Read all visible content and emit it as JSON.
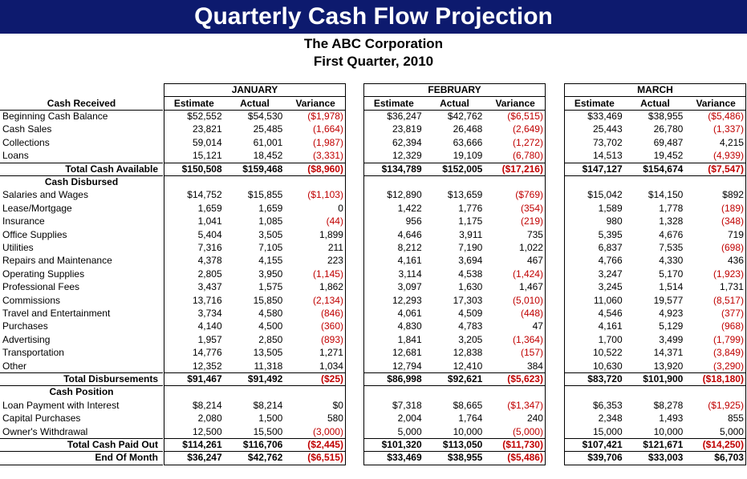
{
  "header": {
    "title": "Quarterly Cash Flow Projection",
    "company": "The ABC Corporation",
    "period": "First Quarter, 2010"
  },
  "months": [
    "JANUARY",
    "FEBRUARY",
    "MARCH"
  ],
  "columns": [
    "Estimate",
    "Actual",
    "Variance"
  ],
  "sections": [
    {
      "title": "Cash Received",
      "rows": [
        {
          "label": "Beginning Cash Balance",
          "cells": [
            "$52,552",
            "$54,530",
            "($1,978)",
            "$36,247",
            "$42,762",
            "($6,515)",
            "$33,469",
            "$38,955",
            "($5,486)"
          ]
        },
        {
          "label": "Cash Sales",
          "cells": [
            "23,821",
            "25,485",
            "(1,664)",
            "23,819",
            "26,468",
            "(2,649)",
            "25,443",
            "26,780",
            "(1,337)"
          ]
        },
        {
          "label": "Collections",
          "cells": [
            "59,014",
            "61,001",
            "(1,987)",
            "62,394",
            "63,666",
            "(1,272)",
            "73,702",
            "69,487",
            "4,215"
          ]
        },
        {
          "label": "Loans",
          "cells": [
            "15,121",
            "18,452",
            "(3,331)",
            "12,329",
            "19,109",
            "(6,780)",
            "14,513",
            "19,452",
            "(4,939)"
          ]
        }
      ],
      "totals": [
        {
          "label": "Total Cash Available",
          "cells": [
            "$150,508",
            "$159,468",
            "($8,960)",
            "$134,789",
            "$152,005",
            "($17,216)",
            "$147,127",
            "$154,674",
            "($7,547)"
          ]
        }
      ]
    },
    {
      "title": "Cash Disbursed",
      "rows": [
        {
          "label": "Salaries and Wages",
          "cells": [
            "$14,752",
            "$15,855",
            "($1,103)",
            "$12,890",
            "$13,659",
            "($769)",
            "$15,042",
            "$14,150",
            "$892"
          ]
        },
        {
          "label": "Lease/Mortgage",
          "cells": [
            "1,659",
            "1,659",
            "0",
            "1,422",
            "1,776",
            "(354)",
            "1,589",
            "1,778",
            "(189)"
          ]
        },
        {
          "label": "Insurance",
          "cells": [
            "1,041",
            "1,085",
            "(44)",
            "956",
            "1,175",
            "(219)",
            "980",
            "1,328",
            "(348)"
          ]
        },
        {
          "label": "Office Supplies",
          "cells": [
            "5,404",
            "3,505",
            "1,899",
            "4,646",
            "3,911",
            "735",
            "5,395",
            "4,676",
            "719"
          ]
        },
        {
          "label": "Utilities",
          "cells": [
            "7,316",
            "7,105",
            "211",
            "8,212",
            "7,190",
            "1,022",
            "6,837",
            "7,535",
            "(698)"
          ]
        },
        {
          "label": "Repairs and Maintenance",
          "cells": [
            "4,378",
            "4,155",
            "223",
            "4,161",
            "3,694",
            "467",
            "4,766",
            "4,330",
            "436"
          ]
        },
        {
          "label": "Operating Supplies",
          "cells": [
            "2,805",
            "3,950",
            "(1,145)",
            "3,114",
            "4,538",
            "(1,424)",
            "3,247",
            "5,170",
            "(1,923)"
          ]
        },
        {
          "label": "Professional Fees",
          "cells": [
            "3,437",
            "1,575",
            "1,862",
            "3,097",
            "1,630",
            "1,467",
            "3,245",
            "1,514",
            "1,731"
          ]
        },
        {
          "label": "Commissions",
          "cells": [
            "13,716",
            "15,850",
            "(2,134)",
            "12,293",
            "17,303",
            "(5,010)",
            "11,060",
            "19,577",
            "(8,517)"
          ]
        },
        {
          "label": "Travel and Entertainment",
          "cells": [
            "3,734",
            "4,580",
            "(846)",
            "4,061",
            "4,509",
            "(448)",
            "4,546",
            "4,923",
            "(377)"
          ]
        },
        {
          "label": "Purchases",
          "cells": [
            "4,140",
            "4,500",
            "(360)",
            "4,830",
            "4,783",
            "47",
            "4,161",
            "5,129",
            "(968)"
          ]
        },
        {
          "label": "Advertising",
          "cells": [
            "1,957",
            "2,850",
            "(893)",
            "1,841",
            "3,205",
            "(1,364)",
            "1,700",
            "3,499",
            "(1,799)"
          ]
        },
        {
          "label": "Transportation",
          "cells": [
            "14,776",
            "13,505",
            "1,271",
            "12,681",
            "12,838",
            "(157)",
            "10,522",
            "14,371",
            "(3,849)"
          ]
        },
        {
          "label": "Other",
          "cells": [
            "12,352",
            "11,318",
            "1,034",
            "12,794",
            "12,410",
            "384",
            "10,630",
            "13,920",
            "(3,290)"
          ]
        }
      ],
      "totals": [
        {
          "label": "Total Disbursements",
          "cells": [
            "$91,467",
            "$91,492",
            "($25)",
            "$86,998",
            "$92,621",
            "($5,623)",
            "$83,720",
            "$101,900",
            "($18,180)"
          ]
        }
      ]
    },
    {
      "title": "Cash Position",
      "rows": [
        {
          "label": "Loan Payment with Interest",
          "cells": [
            "$8,214",
            "$8,214",
            "$0",
            "$7,318",
            "$8,665",
            "($1,347)",
            "$6,353",
            "$8,278",
            "($1,925)"
          ]
        },
        {
          "label": "Capital Purchases",
          "cells": [
            "2,080",
            "1,500",
            "580",
            "2,004",
            "1,764",
            "240",
            "2,348",
            "1,493",
            "855"
          ]
        },
        {
          "label": "Owner's Withdrawal",
          "cells": [
            "12,500",
            "15,500",
            "(3,000)",
            "5,000",
            "10,000",
            "(5,000)",
            "15,000",
            "10,000",
            "5,000"
          ]
        }
      ],
      "totals": [
        {
          "label": "Total Cash Paid Out",
          "cells": [
            "$114,261",
            "$116,706",
            "($2,445)",
            "$101,320",
            "$113,050",
            "($11,730)",
            "$107,421",
            "$121,671",
            "($14,250)"
          ]
        },
        {
          "label": "End Of Month",
          "cells": [
            "$36,247",
            "$42,762",
            "($6,515)",
            "$33,469",
            "$38,955",
            "($5,486)",
            "$39,706",
            "$33,003",
            "$6,703"
          ]
        }
      ]
    }
  ]
}
